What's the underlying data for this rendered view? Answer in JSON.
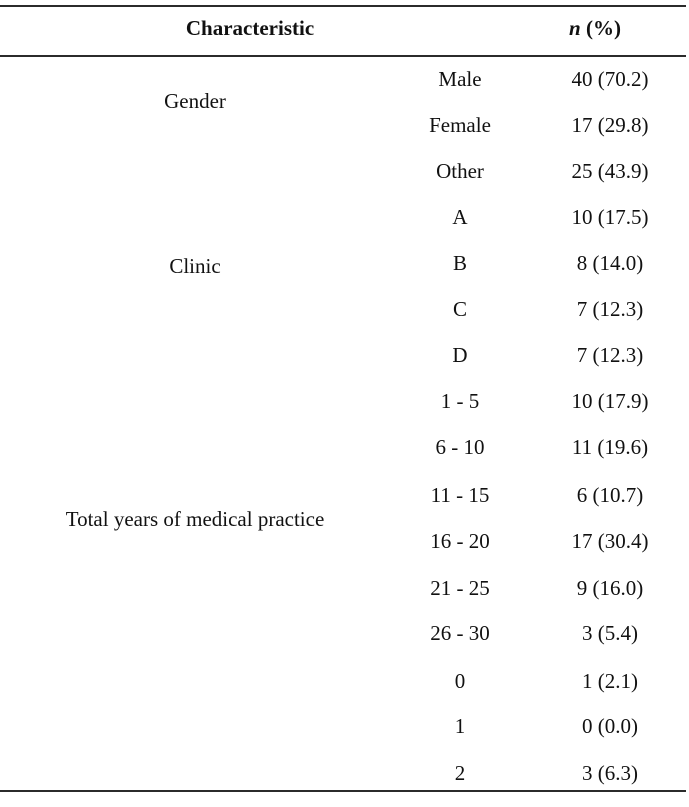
{
  "header": {
    "characteristic": "Characteristic",
    "n_italic": "n",
    "pct": " (%)"
  },
  "groups": [
    {
      "label": "Gender"
    },
    {
      "label": "Clinic"
    },
    {
      "label": "Total years of medical practice"
    }
  ],
  "rows": [
    {
      "sub": "Male",
      "value": "40 (70.2)"
    },
    {
      "sub": "Female",
      "value": "17 (29.8)"
    },
    {
      "sub": "Other",
      "value": "25 (43.9)"
    },
    {
      "sub": "A",
      "value": "10 (17.5)"
    },
    {
      "sub": "B",
      "value": "8 (14.0)"
    },
    {
      "sub": "C",
      "value": "7 (12.3)"
    },
    {
      "sub": "D",
      "value": "7 (12.3)"
    },
    {
      "sub": "1 - 5",
      "value": "10 (17.9)"
    },
    {
      "sub": "6 - 10",
      "value": "11 (19.6)"
    },
    {
      "sub": "11 - 15",
      "value": "6 (10.7)"
    },
    {
      "sub": "16 - 20",
      "value": "17 (30.4)"
    },
    {
      "sub": "21 - 25",
      "value": "9 (16.0)"
    },
    {
      "sub": "26 - 30",
      "value": "3 (5.4)"
    },
    {
      "sub": "0",
      "value": "1 (2.1)"
    },
    {
      "sub": "1",
      "value": "0 (0.0)"
    },
    {
      "sub": "2",
      "value": "3 (6.3)"
    }
  ]
}
